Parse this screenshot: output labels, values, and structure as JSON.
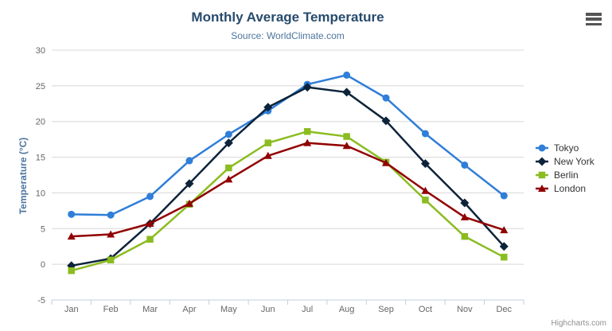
{
  "header": {
    "title": "Monthly Average Temperature",
    "subtitle": "Source: WorldClimate.com"
  },
  "chart_data": {
    "type": "line",
    "categories": [
      "Jan",
      "Feb",
      "Mar",
      "Apr",
      "May",
      "Jun",
      "Jul",
      "Aug",
      "Sep",
      "Oct",
      "Nov",
      "Dec"
    ],
    "series": [
      {
        "name": "Tokyo",
        "color": "#2f7ed8",
        "marker": "circle",
        "values": [
          7.0,
          6.9,
          9.5,
          14.5,
          18.2,
          21.5,
          25.2,
          26.5,
          23.3,
          18.3,
          13.9,
          9.6
        ]
      },
      {
        "name": "New York",
        "color": "#0d233a",
        "marker": "diamond",
        "values": [
          -0.2,
          0.8,
          5.7,
          11.3,
          17.0,
          22.0,
          24.8,
          24.1,
          20.1,
          14.1,
          8.6,
          2.5
        ]
      },
      {
        "name": "Berlin",
        "color": "#8bbc21",
        "marker": "square",
        "values": [
          -0.9,
          0.6,
          3.5,
          8.4,
          13.5,
          17.0,
          18.6,
          17.9,
          14.3,
          9.0,
          3.9,
          1.0
        ]
      },
      {
        "name": "London",
        "color": "#910000",
        "marker": "triangle",
        "values": [
          3.9,
          4.2,
          5.7,
          8.5,
          11.9,
          15.2,
          17.0,
          16.6,
          14.2,
          10.3,
          6.6,
          4.8
        ]
      }
    ],
    "title": "Monthly Average Temperature",
    "subtitle": "Source: WorldClimate.com",
    "xlabel": "",
    "ylabel": "Temperature (°C)",
    "ylim": [
      -5,
      30
    ],
    "ytick_step": 5,
    "yticks": [
      -5,
      0,
      5,
      10,
      15,
      20,
      25,
      30
    ],
    "grid": true,
    "legend_position": "right"
  },
  "colors": {
    "title": "#274b6d",
    "subtitle": "#4d759e",
    "axis_title": "#4d759e",
    "axis_labels": "#666666",
    "gridline": "#d8d8d8",
    "axis_line": "#c0d0e0",
    "legend_text": "#333333"
  },
  "credits": {
    "label": "Highcharts.com"
  }
}
